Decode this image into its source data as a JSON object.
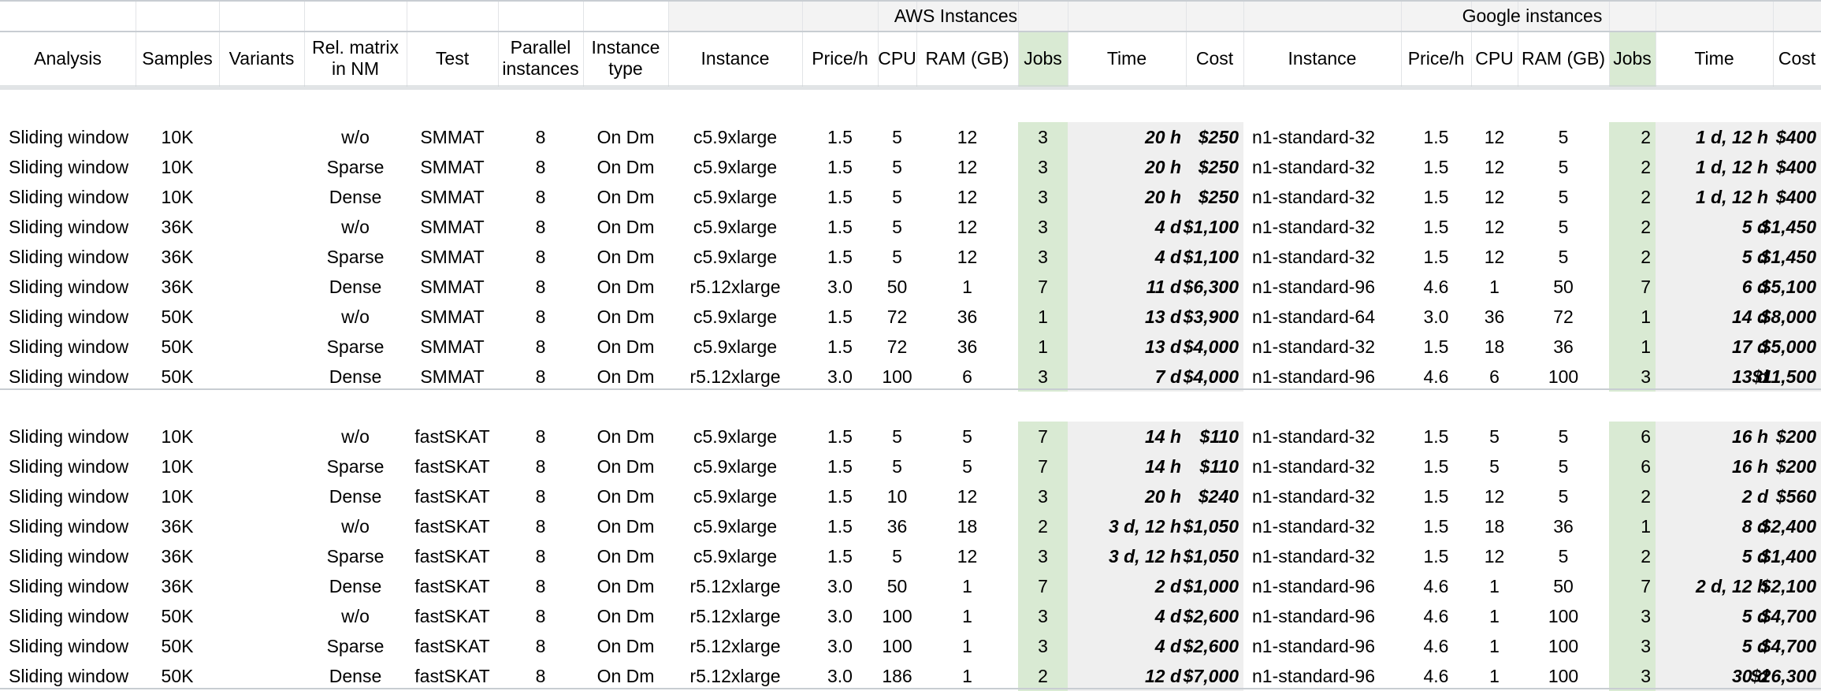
{
  "group_headers": {
    "aws": "AWS Instances",
    "google": "Google instances"
  },
  "columns": [
    "Analysis",
    "Samples",
    "Variants",
    "Rel. matrix\nin NM",
    "Test",
    "Parallel\ninstances",
    "Instance\ntype",
    "Instance",
    "Price/h",
    "CPU",
    "RAM (GB)",
    "Jobs",
    "Time",
    "Cost",
    "Instance",
    "Price/h",
    "CPU",
    "RAM (GB)",
    "Jobs",
    "Time",
    "Cost"
  ],
  "sections": [
    {
      "rows": [
        [
          "Sliding window",
          "10K",
          "",
          "w/o",
          "SMMAT",
          "8",
          "On Dm",
          "c5.9xlarge",
          "1.5",
          "5",
          "12",
          "3",
          "20 h",
          "$250",
          "n1-standard-32",
          "1.5",
          "12",
          "5",
          "2",
          "1 d, 12 h",
          "$400"
        ],
        [
          "Sliding window",
          "10K",
          "",
          "Sparse",
          "SMMAT",
          "8",
          "On Dm",
          "c5.9xlarge",
          "1.5",
          "5",
          "12",
          "3",
          "20 h",
          "$250",
          "n1-standard-32",
          "1.5",
          "12",
          "5",
          "2",
          "1 d, 12 h",
          "$400"
        ],
        [
          "Sliding window",
          "10K",
          "",
          "Dense",
          "SMMAT",
          "8",
          "On Dm",
          "c5.9xlarge",
          "1.5",
          "5",
          "12",
          "3",
          "20 h",
          "$250",
          "n1-standard-32",
          "1.5",
          "12",
          "5",
          "2",
          "1 d, 12 h",
          "$400"
        ],
        [
          "Sliding window",
          "36K",
          "",
          "w/o",
          "SMMAT",
          "8",
          "On Dm",
          "c5.9xlarge",
          "1.5",
          "5",
          "12",
          "3",
          "4 d",
          "$1,100",
          "n1-standard-32",
          "1.5",
          "12",
          "5",
          "2",
          "5 d",
          "$1,450"
        ],
        [
          "Sliding window",
          "36K",
          "",
          "Sparse",
          "SMMAT",
          "8",
          "On Dm",
          "c5.9xlarge",
          "1.5",
          "5",
          "12",
          "3",
          "4 d",
          "$1,100",
          "n1-standard-32",
          "1.5",
          "12",
          "5",
          "2",
          "5 d",
          "$1,450"
        ],
        [
          "Sliding window",
          "36K",
          "",
          "Dense",
          "SMMAT",
          "8",
          "On Dm",
          "r5.12xlarge",
          "3.0",
          "50",
          "1",
          "7",
          "11 d",
          "$6,300",
          "n1-standard-96",
          "4.6",
          "1",
          "50",
          "7",
          "6 d",
          "$5,100"
        ],
        [
          "Sliding window",
          "50K",
          "",
          "w/o",
          "SMMAT",
          "8",
          "On Dm",
          "c5.9xlarge",
          "1.5",
          "72",
          "36",
          "1",
          "13 d",
          "$3,900",
          "n1-standard-64",
          "3.0",
          "36",
          "72",
          "1",
          "14 d",
          "$8,000"
        ],
        [
          "Sliding window",
          "50K",
          "",
          "Sparse",
          "SMMAT",
          "8",
          "On Dm",
          "c5.9xlarge",
          "1.5",
          "72",
          "36",
          "1",
          "13 d",
          "$4,000",
          "n1-standard-32",
          "1.5",
          "18",
          "36",
          "1",
          "17 d",
          "$5,000"
        ],
        [
          "Sliding window",
          "50K",
          "",
          "Dense",
          "SMMAT",
          "8",
          "On Dm",
          "r5.12xlarge",
          "3.0",
          "100",
          "6",
          "3",
          "7 d",
          "$4,000",
          "n1-standard-96",
          "4.6",
          "6",
          "100",
          "3",
          "13 d",
          "$11,500"
        ]
      ]
    },
    {
      "rows": [
        [
          "Sliding window",
          "10K",
          "",
          "w/o",
          "fastSKAT",
          "8",
          "On Dm",
          "c5.9xlarge",
          "1.5",
          "5",
          "5",
          "7",
          "14 h",
          "$110",
          "n1-standard-32",
          "1.5",
          "5",
          "5",
          "6",
          "16 h",
          "$200"
        ],
        [
          "Sliding window",
          "10K",
          "",
          "Sparse",
          "fastSKAT",
          "8",
          "On Dm",
          "c5.9xlarge",
          "1.5",
          "5",
          "5",
          "7",
          "14 h",
          "$110",
          "n1-standard-32",
          "1.5",
          "5",
          "5",
          "6",
          "16 h",
          "$200"
        ],
        [
          "Sliding window",
          "10K",
          "",
          "Dense",
          "fastSKAT",
          "8",
          "On Dm",
          "c5.9xlarge",
          "1.5",
          "10",
          "12",
          "3",
          "20 h",
          "$240",
          "n1-standard-32",
          "1.5",
          "12",
          "5",
          "2",
          "2 d",
          "$560"
        ],
        [
          "Sliding window",
          "36K",
          "",
          "w/o",
          "fastSKAT",
          "8",
          "On Dm",
          "c5.9xlarge",
          "1.5",
          "36",
          "18",
          "2",
          "3 d, 12 h",
          "$1,050",
          "n1-standard-32",
          "1.5",
          "18",
          "36",
          "1",
          "8 d",
          "$2,400"
        ],
        [
          "Sliding window",
          "36K",
          "",
          "Sparse",
          "fastSKAT",
          "8",
          "On Dm",
          "c5.9xlarge",
          "1.5",
          "5",
          "12",
          "3",
          "3 d, 12 h",
          "$1,050",
          "n1-standard-32",
          "1.5",
          "12",
          "5",
          "2",
          "5 d",
          "$1,400"
        ],
        [
          "Sliding window",
          "36K",
          "",
          "Dense",
          "fastSKAT",
          "8",
          "On Dm",
          "r5.12xlarge",
          "3.0",
          "50",
          "1",
          "7",
          "2 d",
          "$1,000",
          "n1-standard-96",
          "4.6",
          "1",
          "50",
          "7",
          "2 d, 12 h",
          "$2,100"
        ],
        [
          "Sliding window",
          "50K",
          "",
          "w/o",
          "fastSKAT",
          "8",
          "On Dm",
          "r5.12xlarge",
          "3.0",
          "100",
          "1",
          "3",
          "4 d",
          "$2,600",
          "n1-standard-96",
          "4.6",
          "1",
          "100",
          "3",
          "5 d",
          "$4,700"
        ],
        [
          "Sliding window",
          "50K",
          "",
          "Sparse",
          "fastSKAT",
          "8",
          "On Dm",
          "r5.12xlarge",
          "3.0",
          "100",
          "1",
          "3",
          "4 d",
          "$2,600",
          "n1-standard-96",
          "4.6",
          "1",
          "100",
          "3",
          "5 d",
          "$4,700"
        ],
        [
          "Sliding window",
          "50K",
          "",
          "Dense",
          "fastSKAT",
          "8",
          "On Dm",
          "r5.12xlarge",
          "3.0",
          "186",
          "1",
          "2",
          "12 d",
          "$7,000",
          "n1-standard-96",
          "4.6",
          "1",
          "100",
          "3",
          "30 d",
          "$26,300"
        ]
      ]
    }
  ],
  "colors": {
    "jobs_fill": "#d9ead3",
    "group_fill": "#f3f3f3",
    "time_cost_fill": "#efefef",
    "rule": "#c8cdd2",
    "text": "#000000"
  }
}
